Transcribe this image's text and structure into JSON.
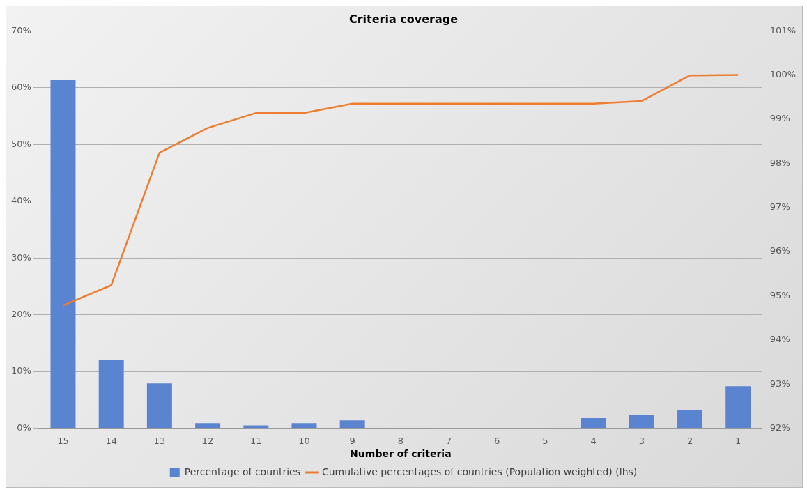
{
  "chart_data": {
    "type": "bar",
    "title": "Criteria coverage",
    "xlabel": "Number of criteria",
    "categories": [
      "15",
      "14",
      "13",
      "12",
      "11",
      "10",
      "9",
      "8",
      "7",
      "6",
      "5",
      "4",
      "3",
      "2",
      "1"
    ],
    "series": [
      {
        "name": "Percentage of countries",
        "color": "#5b84d0",
        "values": [
          61.3,
          12.0,
          7.9,
          0.9,
          0.5,
          0.9,
          1.4,
          0,
          0,
          0,
          0,
          1.8,
          2.3,
          3.2,
          7.4
        ]
      },
      {
        "name": "Cumulative percentages of countries (Population weighted) (lhs)",
        "type": "line",
        "axis": "y2",
        "color": "#ed7d31",
        "values": [
          94.78,
          95.24,
          98.24,
          98.8,
          99.14,
          99.14,
          99.35,
          99.35,
          99.35,
          99.35,
          99.35,
          99.35,
          99.41,
          99.99,
          100
        ]
      }
    ],
    "ylim": [
      0,
      70
    ],
    "yticks": [
      {
        "value": 0,
        "label": "0%"
      },
      {
        "value": 10,
        "label": "10%"
      },
      {
        "value": 20,
        "label": "20%"
      },
      {
        "value": 30,
        "label": "30%"
      },
      {
        "value": 40,
        "label": "40%"
      },
      {
        "value": 50,
        "label": "50%"
      },
      {
        "value": 60,
        "label": "60%"
      },
      {
        "value": 70,
        "label": "70%"
      }
    ],
    "y2lim": [
      92,
      101
    ],
    "y2ticks": [
      {
        "value": 92,
        "label": "92%"
      },
      {
        "value": 93,
        "label": "93%"
      },
      {
        "value": 94,
        "label": "94%"
      },
      {
        "value": 95,
        "label": "95%"
      },
      {
        "value": 96,
        "label": "96%"
      },
      {
        "value": 97,
        "label": "97%"
      },
      {
        "value": 98,
        "label": "98%"
      },
      {
        "value": 99,
        "label": "99%"
      },
      {
        "value": 100,
        "label": "100%"
      },
      {
        "value": 101,
        "label": "101%"
      }
    ],
    "grid": "y",
    "legend": "bottom"
  }
}
